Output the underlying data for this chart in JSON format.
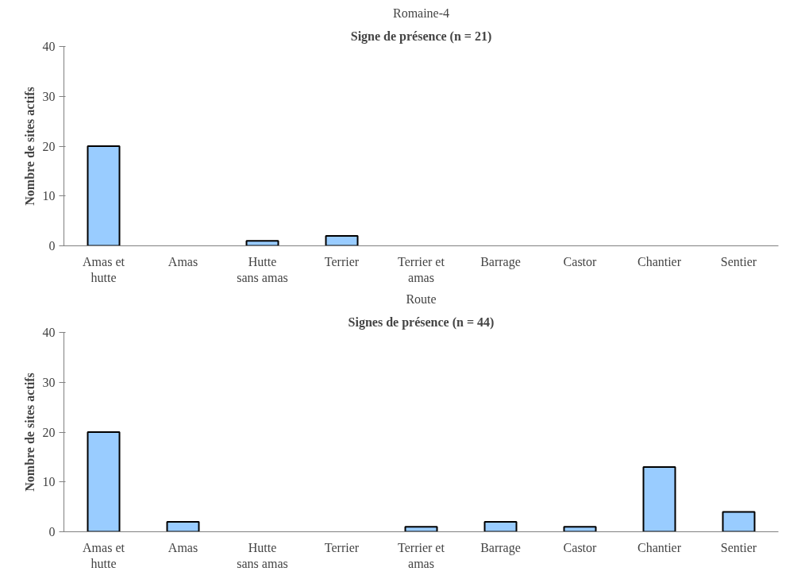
{
  "chart_data": [
    {
      "type": "bar",
      "subtitle": "Romaine-4",
      "title": "Signe de présence (n = 21)",
      "ylabel": "Nombre de sites actifs",
      "categories": [
        "Amas et\nhutte",
        "Amas",
        "Hutte\nsans amas",
        "Terrier",
        "Terrier et\namas",
        "Barrage",
        "Castor",
        "Chantier",
        "Sentier"
      ],
      "values": [
        20,
        0,
        1,
        2,
        0,
        0,
        0,
        0,
        0
      ],
      "color": "#99ccff",
      "ylim": [
        0,
        40
      ],
      "yticks": [
        0,
        10,
        20,
        30,
        40
      ],
      "grid": false
    },
    {
      "type": "bar",
      "subtitle": "Route",
      "title": "Signes de présence (n = 44)",
      "ylabel": "Nombre de sites actifs",
      "categories": [
        "Amas et\nhutte",
        "Amas",
        "Hutte\nsans amas",
        "Terrier",
        "Terrier et\namas",
        "Barrage",
        "Castor",
        "Chantier",
        "Sentier"
      ],
      "values": [
        20,
        2,
        0,
        0,
        1,
        2,
        1,
        13,
        4
      ],
      "color": "#99ccff",
      "ylim": [
        0,
        40
      ],
      "yticks": [
        0,
        10,
        20,
        30,
        40
      ],
      "grid": false
    }
  ]
}
